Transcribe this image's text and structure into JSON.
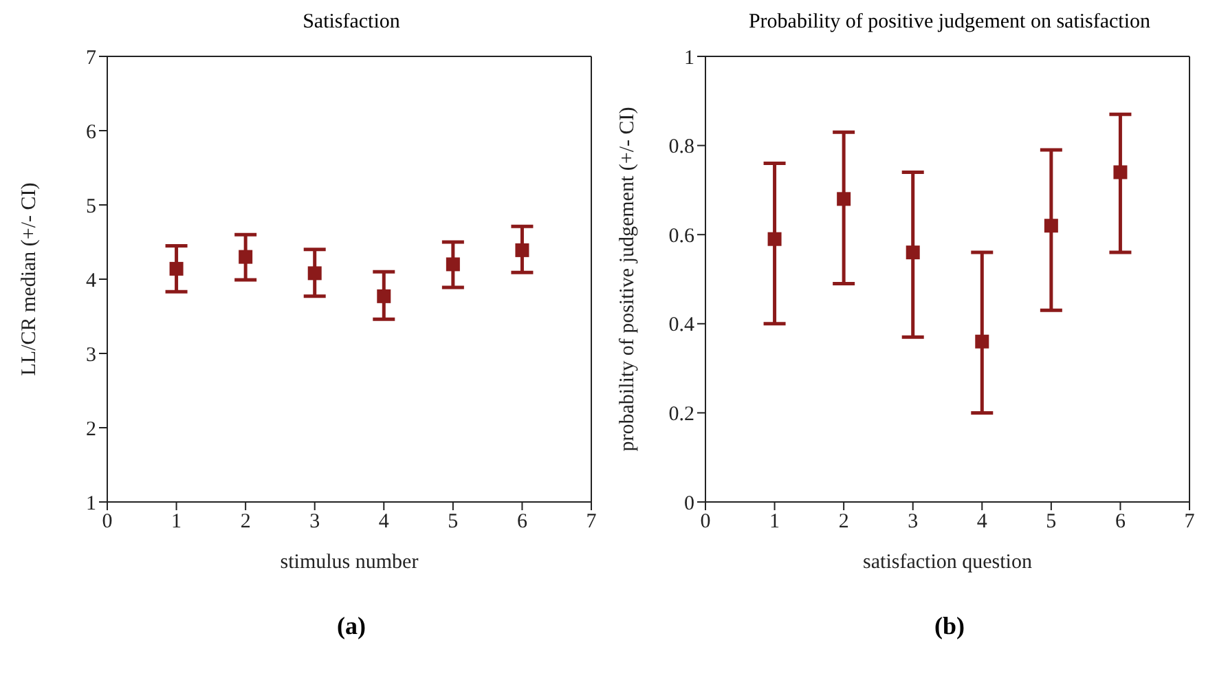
{
  "chart_data": [
    {
      "type": "scatter",
      "title": "Satisfaction",
      "xlabel": "stimulus number",
      "ylabel": "LL/CR median (+/- CI)",
      "annotations": [
        "(a)"
      ],
      "x": [
        1,
        2,
        3,
        4,
        5,
        6
      ],
      "marker": "square",
      "series": [
        {
          "color": "#8b1a1a",
          "values": [
            4.14,
            4.3,
            4.08,
            3.77,
            4.2,
            4.39
          ],
          "errors": [
            [
              3.83,
              4.45
            ],
            [
              3.99,
              4.6
            ],
            [
              3.77,
              4.4
            ],
            [
              3.46,
              4.1
            ],
            [
              3.89,
              4.5
            ],
            [
              4.09,
              4.71
            ]
          ]
        }
      ],
      "xlim": [
        0,
        7
      ],
      "xticks": [
        0,
        1,
        2,
        3,
        4,
        5,
        6,
        7
      ],
      "ylim": [
        1,
        7
      ],
      "yticks": [
        1,
        2,
        3,
        4,
        5,
        6,
        7
      ]
    },
    {
      "type": "scatter",
      "title": "Probability of positive judgement on satisfaction",
      "xlabel": "satisfaction question",
      "ylabel": "probability of positive judgement (+/- CI)",
      "annotations": [
        "(b)"
      ],
      "x": [
        1,
        2,
        3,
        4,
        5,
        6
      ],
      "marker": "square",
      "series": [
        {
          "color": "#8b1a1a",
          "values": [
            0.59,
            0.68,
            0.56,
            0.36,
            0.62,
            0.74
          ],
          "errors": [
            [
              0.4,
              0.76
            ],
            [
              0.49,
              0.83
            ],
            [
              0.37,
              0.74
            ],
            [
              0.2,
              0.56
            ],
            [
              0.43,
              0.79
            ],
            [
              0.56,
              0.87
            ]
          ]
        }
      ],
      "xlim": [
        0,
        7
      ],
      "xticks": [
        0,
        1,
        2,
        3,
        4,
        5,
        6,
        7
      ],
      "ylim": [
        0,
        1
      ],
      "yticks": [
        0,
        0.2,
        0.4,
        0.6,
        0.8,
        1
      ]
    }
  ]
}
